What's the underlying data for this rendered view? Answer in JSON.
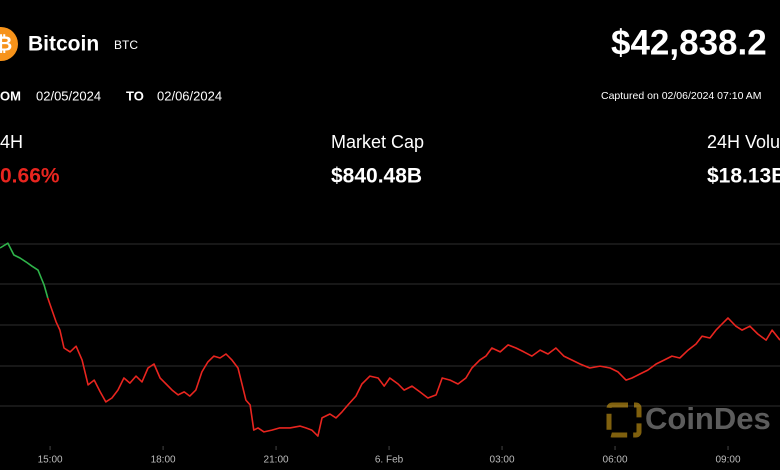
{
  "header": {
    "name": "Bitcoin",
    "symbol": "BTC",
    "price": "$42,838.2",
    "from_label": "OM",
    "from_date": "02/05/2024",
    "to_label": "TO",
    "to_date": "02/06/2024",
    "captured": "Captured on 02/06/2024 07:10 AM"
  },
  "stats": [
    {
      "label": "4H",
      "value": "0.66%"
    },
    {
      "label": "Market Cap",
      "value": "$840.48B"
    },
    {
      "label": "24H Volu",
      "value": "$18.13B"
    }
  ],
  "watermark": "CoinDes",
  "chart_data": {
    "type": "line",
    "xlim": [
      13.67,
      34.38
    ],
    "ylim": [
      42483.4,
      43170
    ],
    "xticks": [
      {
        "value": 15,
        "label": "15:00"
      },
      {
        "value": 18,
        "label": "18:00"
      },
      {
        "value": 21,
        "label": "21:00"
      },
      {
        "value": 24,
        "label": "6. Feb"
      },
      {
        "value": 27,
        "label": "03:00"
      },
      {
        "value": 30,
        "label": "06:00"
      },
      {
        "value": 33,
        "label": "09:00"
      }
    ],
    "series": [
      {
        "color": "#2fb34a",
        "x": [
          13.67,
          13.88,
          14.04,
          14.2,
          14.36,
          14.52,
          14.68,
          14.84,
          14.94
        ],
        "values": [
          43137,
          43153,
          43114,
          43104,
          43091,
          43077,
          43064,
          43015,
          42972
        ]
      },
      {
        "color": "#e8251f",
        "x": [
          14.94,
          15.05,
          15.16,
          15.26,
          15.37,
          15.53,
          15.69,
          15.85,
          16.01,
          16.17,
          16.33,
          16.48,
          16.64,
          16.8,
          16.96,
          17.12,
          17.28,
          17.44,
          17.6,
          17.76,
          17.92,
          18.08,
          18.24,
          18.4,
          18.56,
          18.71,
          18.87,
          19.03,
          19.19,
          19.35,
          19.51,
          19.67,
          19.83,
          19.99,
          20.1,
          20.2,
          20.31,
          20.41,
          20.52,
          20.68,
          20.89,
          21.1,
          21.37,
          21.64,
          21.79,
          21.95,
          22.11,
          22.22,
          22.43,
          22.59,
          22.75,
          22.91,
          23.12,
          23.28,
          23.49,
          23.71,
          23.87,
          24.02,
          24.24,
          24.4,
          24.61,
          24.82,
          25.03,
          25.25,
          25.41,
          25.62,
          25.83,
          26.04,
          26.2,
          26.41,
          26.57,
          26.73,
          26.95,
          27.16,
          27.37,
          27.58,
          27.79,
          28.01,
          28.22,
          28.43,
          28.64,
          28.86,
          29.07,
          29.33,
          29.6,
          29.87,
          30.08,
          30.29,
          30.45,
          30.66,
          30.87,
          31.09,
          31.3,
          31.51,
          31.72,
          31.94,
          32.15,
          32.31,
          32.52,
          32.68,
          32.84,
          33.0,
          33.21,
          33.37,
          33.58,
          33.79,
          34.01,
          34.17,
          34.38
        ],
        "values": [
          42972,
          42932,
          42893,
          42866,
          42807,
          42794,
          42813,
          42767,
          42685,
          42701,
          42662,
          42629,
          42642,
          42668,
          42708,
          42691,
          42714,
          42695,
          42741,
          42754,
          42708,
          42688,
          42668,
          42652,
          42662,
          42648,
          42668,
          42728,
          42761,
          42780,
          42774,
          42787,
          42767,
          42741,
          42685,
          42635,
          42619,
          42536,
          42543,
          42530,
          42536,
          42543,
          42543,
          42549,
          42543,
          42536,
          42516,
          42576,
          42589,
          42576,
          42596,
          42619,
          42648,
          42688,
          42714,
          42708,
          42681,
          42708,
          42688,
          42668,
          42681,
          42662,
          42642,
          42652,
          42708,
          42701,
          42688,
          42708,
          42741,
          42767,
          42780,
          42807,
          42794,
          42817,
          42807,
          42794,
          42780,
          42800,
          42787,
          42807,
          42780,
          42767,
          42754,
          42741,
          42747,
          42741,
          42728,
          42701,
          42708,
          42721,
          42734,
          42754,
          42767,
          42780,
          42774,
          42800,
          42820,
          42846,
          42840,
          42866,
          42886,
          42906,
          42879,
          42866,
          42879,
          42853,
          42833,
          42866,
          42833
        ]
      }
    ]
  }
}
